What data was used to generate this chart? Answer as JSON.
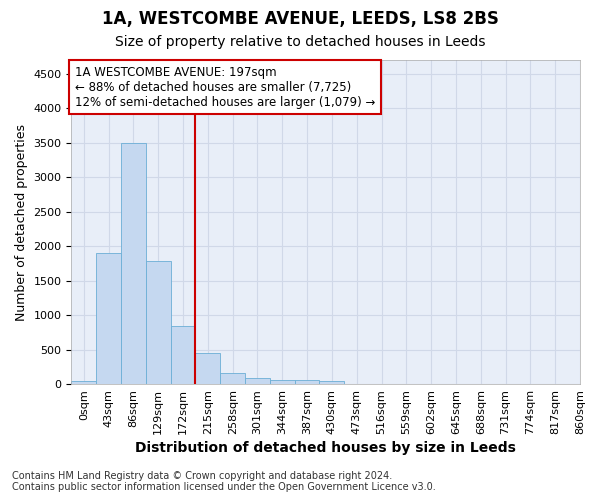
{
  "title": "1A, WESTCOMBE AVENUE, LEEDS, LS8 2BS",
  "subtitle": "Size of property relative to detached houses in Leeds",
  "xlabel": "Distribution of detached houses by size in Leeds",
  "ylabel": "Number of detached properties",
  "bin_labels": [
    "0sqm",
    "43sqm",
    "86sqm",
    "129sqm",
    "172sqm",
    "215sqm",
    "258sqm",
    "301sqm",
    "344sqm",
    "387sqm",
    "430sqm",
    "473sqm",
    "516sqm",
    "559sqm",
    "602sqm",
    "645sqm",
    "688sqm",
    "731sqm",
    "774sqm",
    "817sqm",
    "860sqm"
  ],
  "bar_heights": [
    50,
    1900,
    3500,
    1780,
    840,
    450,
    160,
    95,
    65,
    55,
    40,
    0,
    0,
    0,
    0,
    0,
    0,
    0,
    0,
    0,
    0
  ],
  "bar_color": "#c5d8f0",
  "bar_edge_color": "#6baed6",
  "vline_x": 5.0,
  "vline_color": "#cc0000",
  "annotation_text_line1": "1A WESTCOMBE AVENUE: 197sqm",
  "annotation_text_line2": "← 88% of detached houses are smaller (7,725)",
  "annotation_text_line3": "12% of semi-detached houses are larger (1,079) →",
  "annotation_box_color": "#cc0000",
  "annotation_box_bg": "#ffffff",
  "ylim": [
    0,
    4700
  ],
  "xlim_max": 20,
  "grid_color": "#d0d8e8",
  "background_color": "#ffffff",
  "plot_bg_color": "#e8eef8",
  "footer_line1": "Contains HM Land Registry data © Crown copyright and database right 2024.",
  "footer_line2": "Contains public sector information licensed under the Open Government Licence v3.0.",
  "title_fontsize": 12,
  "subtitle_fontsize": 10,
  "ylabel_fontsize": 9,
  "xlabel_fontsize": 10,
  "tick_fontsize": 8,
  "footer_fontsize": 7
}
